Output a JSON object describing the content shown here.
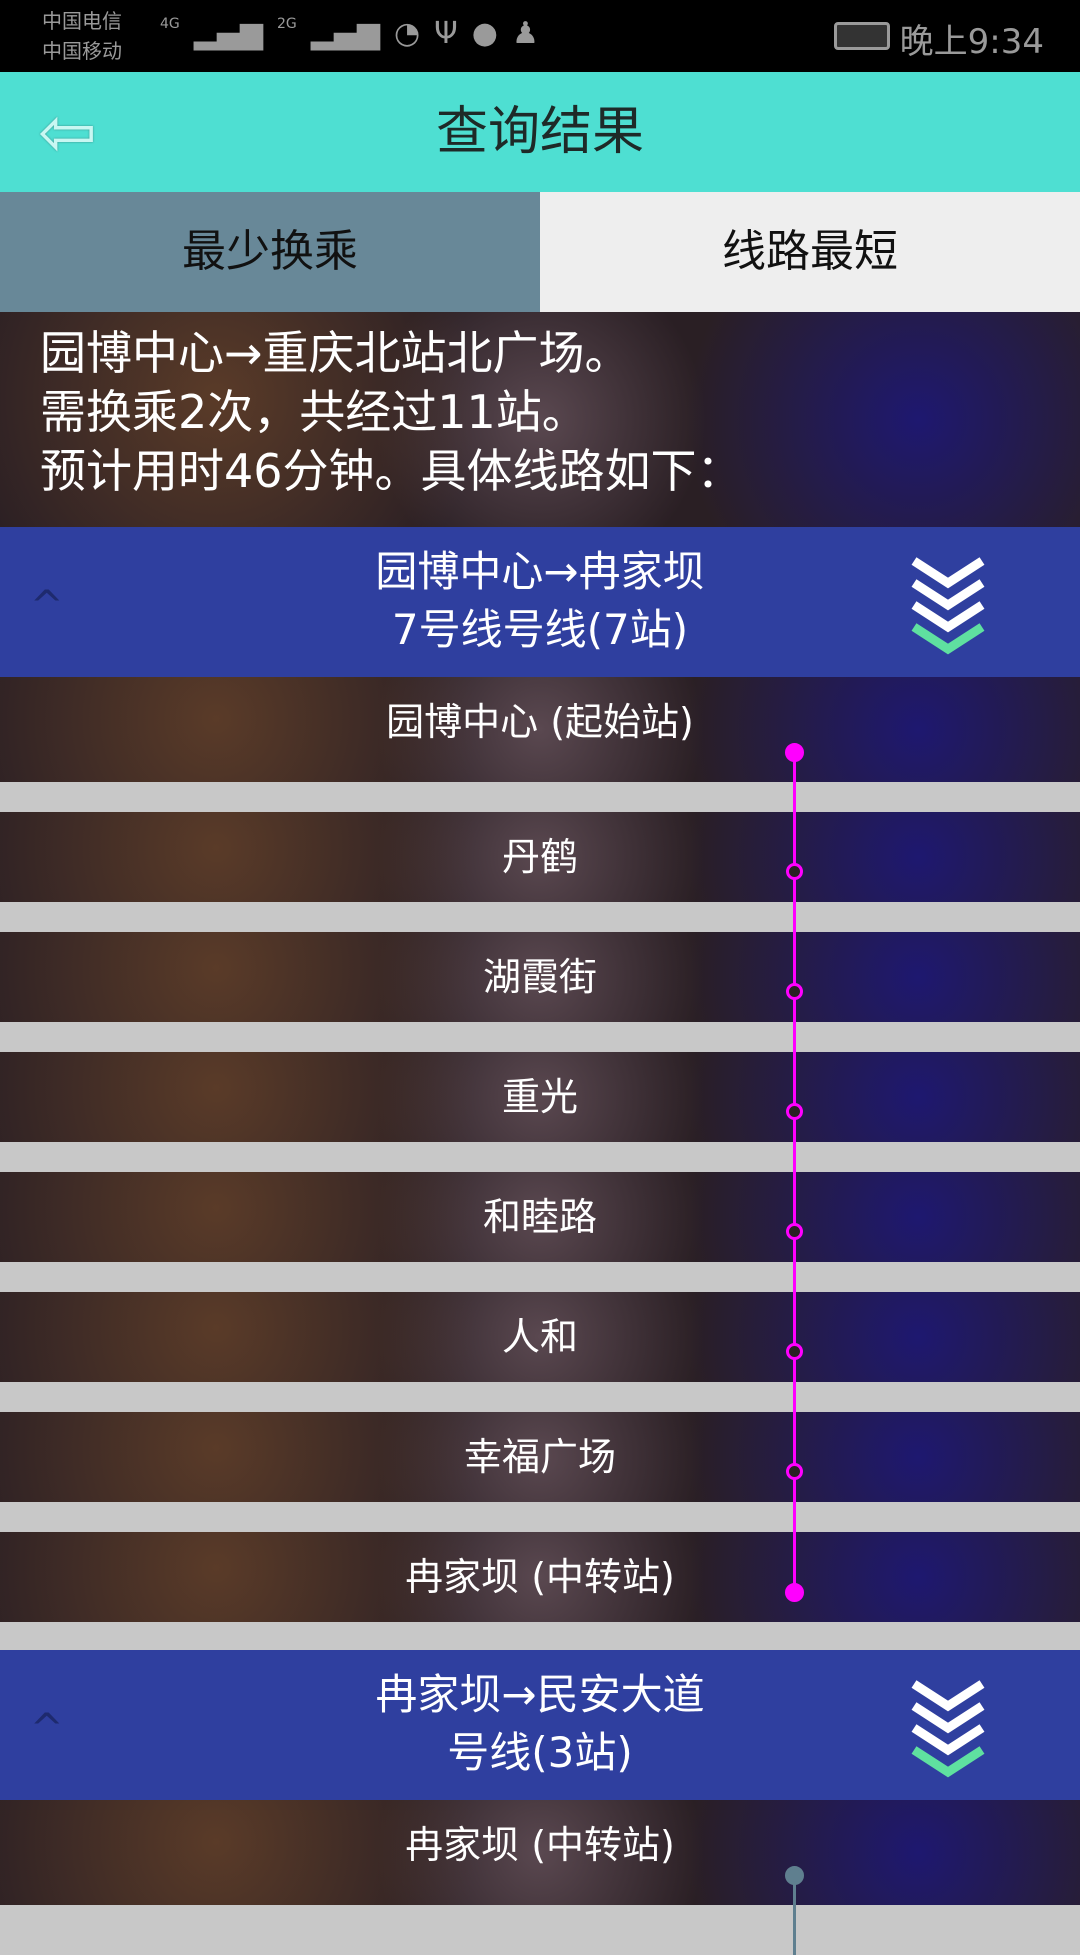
{
  "status_bar": {
    "carrier1": "中国电信",
    "carrier2": "中国移动",
    "net1": "4G",
    "net2": "2G",
    "time": "晚上9:34"
  },
  "header": {
    "title": "查询结果",
    "back_icon": "arrow-left-icon"
  },
  "tabs": [
    {
      "label": "最少换乘",
      "active": true
    },
    {
      "label": "线路最短",
      "active": false
    }
  ],
  "summary": {
    "line1": "园博中心→重庆北站北广场。",
    "line2": "需换乘2次，共经过11站。",
    "line3": "预计用时46分钟。具体线路如下："
  },
  "segments": [
    {
      "route": "园博中心→冉家坝",
      "line_info": "7号线号线(7站)",
      "line_color": "#ff00ff",
      "stations": [
        "园博中心  (起始站)",
        "丹鹤",
        "湖霞街",
        "重光",
        "和睦路",
        "人和",
        "幸福广场",
        "冉家坝  (中转站)"
      ]
    },
    {
      "route": "冉家坝→民安大道",
      "line_info": "号线(3站)",
      "line_color": "#5f7f8f",
      "stations": [
        "冉家坝  (中转站)"
      ]
    }
  ]
}
